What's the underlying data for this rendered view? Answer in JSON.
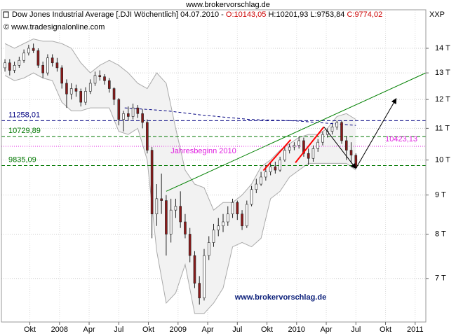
{
  "chart_data": {
    "type": "candlestick",
    "title": "www.brokervorschlag.de",
    "header": [
      "Dow Jones Industrial Average [.DJI  Wöchentlich] 04.07.2010 -",
      "O:10143,05",
      "H:10201,93",
      "L:9753,84",
      "C:9774,02"
    ],
    "header_colors": [
      "#000000",
      "#cc0000",
      "#000000",
      "#000000",
      "#cc0000"
    ],
    "copyright": "© www.tradesignalonline.com",
    "corner_label": "XXP",
    "watermark": "www.brokervorschlag.de",
    "log_scale": true,
    "grid": true,
    "up_color": "#ffffff",
    "down_color": "#8b1a1a",
    "xlim": [
      2007.51,
      2011.09
    ],
    "xticks": [
      {
        "value": 2007.75,
        "label": "Okt"
      },
      2008,
      {
        "value": 2008.25,
        "label": "Apr"
      },
      {
        "value": 2008.5,
        "label": "Jul"
      },
      {
        "value": 2008.75,
        "label": "Okt"
      },
      2009,
      {
        "value": 2009.25,
        "label": "Apr"
      },
      {
        "value": 2009.5,
        "label": "Jul"
      },
      {
        "value": 2009.75,
        "label": "Okt"
      },
      2010,
      {
        "value": 2010.25,
        "label": "Apr"
      },
      {
        "value": 2010.5,
        "label": "Jul"
      },
      {
        "value": 2010.75,
        "label": "Okt"
      },
      2011
    ],
    "ylim": [
      6140,
      15720
    ],
    "yticks": [
      {
        "value": 7000,
        "label": "7 T"
      },
      {
        "value": 8000,
        "label": "8 T"
      },
      {
        "value": 9000,
        "label": "9 T"
      },
      {
        "value": 10000,
        "label": "10 T"
      },
      {
        "value": 11000,
        "label": "11 T"
      },
      {
        "value": 12000,
        "label": "12 T"
      },
      {
        "value": 13000,
        "label": "13 T"
      },
      {
        "value": 14000,
        "label": "14 T"
      }
    ],
    "x": [
      2007.54,
      2007.58,
      2007.62,
      2007.66,
      2007.7,
      2007.74,
      2007.78,
      2007.82,
      2007.86,
      2007.9,
      2007.94,
      2007.98,
      2008.02,
      2008.06,
      2008.1,
      2008.14,
      2008.18,
      2008.22,
      2008.26,
      2008.3,
      2008.34,
      2008.38,
      2008.42,
      2008.46,
      2008.5,
      2008.54,
      2008.58,
      2008.62,
      2008.66,
      2008.7,
      2008.74,
      2008.78,
      2008.82,
      2008.86,
      2008.9,
      2008.94,
      2008.98,
      2009.02,
      2009.06,
      2009.1,
      2009.14,
      2009.18,
      2009.22,
      2009.26,
      2009.3,
      2009.34,
      2009.38,
      2009.42,
      2009.46,
      2009.5,
      2009.54,
      2009.58,
      2009.62,
      2009.66,
      2009.7,
      2009.74,
      2009.78,
      2009.82,
      2009.86,
      2009.9,
      2009.94,
      2009.98,
      2010.02,
      2010.06,
      2010.1,
      2010.14,
      2010.18,
      2010.22,
      2010.26,
      2010.3,
      2010.34,
      2010.38,
      2010.42,
      2010.46,
      2010.5
    ],
    "open": [
      13200,
      13400,
      13100,
      13300,
      13500,
      13800,
      14000,
      13900,
      13300,
      13000,
      13600,
      13400,
      13200,
      12600,
      12200,
      12400,
      12300,
      11900,
      12300,
      12600,
      12900,
      12850,
      12700,
      12400,
      12000,
      11300,
      11500,
      11400,
      11700,
      11500,
      11200,
      10300,
      8500,
      8900,
      8850,
      8000,
      8600,
      8700,
      8300,
      8000,
      7500,
      6900,
      6600,
      7500,
      7800,
      8100,
      8200,
      8300,
      8500,
      8800,
      8500,
      8200,
      8750,
      9150,
      9300,
      9500,
      9650,
      9800,
      9700,
      10000,
      10300,
      10400,
      10450,
      10600,
      10200,
      10050,
      10350,
      10550,
      10800,
      10900,
      11050,
      11200,
      10600,
      10300,
      10143.05
    ],
    "high": [
      13550,
      13550,
      13450,
      13650,
      13950,
      14150,
      14200,
      14000,
      13450,
      13750,
      13750,
      13600,
      13300,
      12750,
      12600,
      12550,
      12400,
      12450,
      12750,
      13050,
      13100,
      12950,
      12800,
      12450,
      12050,
      11600,
      11750,
      11850,
      11800,
      11650,
      11300,
      10400,
      9300,
      9600,
      9000,
      8900,
      8900,
      9100,
      8500,
      8150,
      7600,
      7050,
      7650,
      7950,
      8250,
      8400,
      8500,
      8700,
      8900,
      8850,
      8600,
      8850,
      9250,
      9450,
      9650,
      9850,
      9950,
      9950,
      10100,
      10400,
      10500,
      10550,
      10730,
      10700,
      10350,
      10450,
      10650,
      10900,
      11000,
      11150,
      11260,
      11250,
      10750,
      10550,
      10201.93
    ],
    "low": [
      13050,
      12900,
      13000,
      13200,
      13400,
      13700,
      13800,
      13200,
      12800,
      12900,
      13250,
      13050,
      12400,
      11700,
      12000,
      12100,
      11750,
      11800,
      12200,
      12500,
      12700,
      12550,
      12250,
      11800,
      11100,
      10900,
      11250,
      11300,
      11350,
      11000,
      10200,
      7900,
      8200,
      8500,
      7500,
      7800,
      8400,
      8150,
      7900,
      7350,
      6800,
      6470,
      6550,
      7400,
      7700,
      7950,
      8050,
      8200,
      8400,
      8350,
      8100,
      8150,
      8700,
      9050,
      9250,
      9400,
      9550,
      9600,
      9650,
      9950,
      10200,
      10300,
      10350,
      10100,
      9850,
      9950,
      10250,
      10450,
      10700,
      10800,
      10950,
      10500,
      10000,
      9900,
      9753.84
    ],
    "close": [
      13400,
      13100,
      13300,
      13500,
      13800,
      14000,
      13900,
      13300,
      13000,
      13600,
      13400,
      13200,
      12600,
      12200,
      12400,
      12300,
      11900,
      12300,
      12600,
      12900,
      12850,
      12700,
      12400,
      12000,
      11300,
      11500,
      11400,
      11700,
      11500,
      11200,
      10300,
      8500,
      8900,
      8850,
      8000,
      8600,
      8700,
      8300,
      8000,
      7500,
      6900,
      6600,
      7500,
      7800,
      8100,
      8200,
      8300,
      8500,
      8800,
      8500,
      8200,
      8750,
      9150,
      9300,
      9500,
      9650,
      9800,
      9700,
      10000,
      10300,
      10400,
      10450,
      10600,
      10200,
      10050,
      10350,
      10550,
      10800,
      10900,
      11050,
      11200,
      10600,
      10300,
      10150,
      9774.02
    ],
    "band": {
      "color": "#f2f2f2",
      "x": [
        2007.54,
        2007.62,
        2007.7,
        2007.78,
        2007.86,
        2007.94,
        2008.02,
        2008.1,
        2008.18,
        2008.26,
        2008.34,
        2008.42,
        2008.5,
        2008.58,
        2008.66,
        2008.74,
        2008.82,
        2008.9,
        2008.98,
        2009.06,
        2009.14,
        2009.22,
        2009.3,
        2009.38,
        2009.46,
        2009.54,
        2009.62,
        2009.7,
        2009.78,
        2009.86,
        2009.94,
        2010.02,
        2010.1,
        2010.18,
        2010.26,
        2010.34,
        2010.42,
        2010.5
      ],
      "upper": [
        14200,
        14000,
        14200,
        14400,
        14300,
        14300,
        14200,
        14000,
        13400,
        13000,
        13300,
        13500,
        13300,
        13000,
        12600,
        12400,
        13000,
        12600,
        11000,
        9700,
        9300,
        9200,
        8600,
        8800,
        8800,
        9000,
        9300,
        9800,
        10000,
        10300,
        10500,
        10700,
        10800,
        10800,
        11000,
        11400,
        11500,
        11300
      ],
      "lower": [
        12900,
        12700,
        12800,
        13000,
        12800,
        12700,
        11900,
        11600,
        11600,
        11700,
        11700,
        11700,
        10900,
        10800,
        11000,
        10000,
        7600,
        6500,
        6700,
        7300,
        6300,
        6300,
        6500,
        6800,
        7700,
        7800,
        7700,
        7900,
        8900,
        9100,
        9500,
        9700,
        9900,
        9900,
        9900,
        9900,
        9900,
        9700
      ]
    },
    "average": {
      "color": "#000080",
      "x": [
        2008.55,
        2008.9,
        2009.2,
        2009.6,
        2010.0,
        2010.5
      ],
      "values": [
        11700,
        11600,
        11450,
        11300,
        11250,
        11100
      ]
    },
    "levels": [
      {
        "value": 11258.01,
        "label": "11258,01",
        "color": "#000080",
        "label_side": "left"
      },
      {
        "value": 10729.89,
        "label": "10729,89",
        "color": "#007700",
        "label_side": "left"
      },
      {
        "value": 10423.13,
        "label": "10423,13",
        "name": "Jahresbeginn 2010",
        "color": "#e020e0",
        "label_side": "right"
      },
      {
        "value": 9835.09,
        "label": "9835,09",
        "color": "#007700",
        "label_side": "left"
      }
    ],
    "lines": [
      {
        "color": "#008000",
        "x": [
          2008.9,
          2011.09
        ],
        "values": [
          9100,
          13000
        ]
      },
      {
        "color": "#ff0000",
        "x": [
          2009.72,
          2009.95
        ],
        "values": [
          9690,
          10630
        ]
      },
      {
        "color": "#ff0000",
        "x": [
          2009.99,
          2010.23
        ],
        "values": [
          9920,
          11050
        ]
      },
      {
        "color": "#000000",
        "x": [
          2010.23,
          2010.5
        ],
        "values": [
          11050,
          9750
        ]
      },
      {
        "color": "#000000",
        "x": [
          2010.5,
          2010.84
        ],
        "values": [
          9750,
          12030
        ]
      }
    ]
  }
}
